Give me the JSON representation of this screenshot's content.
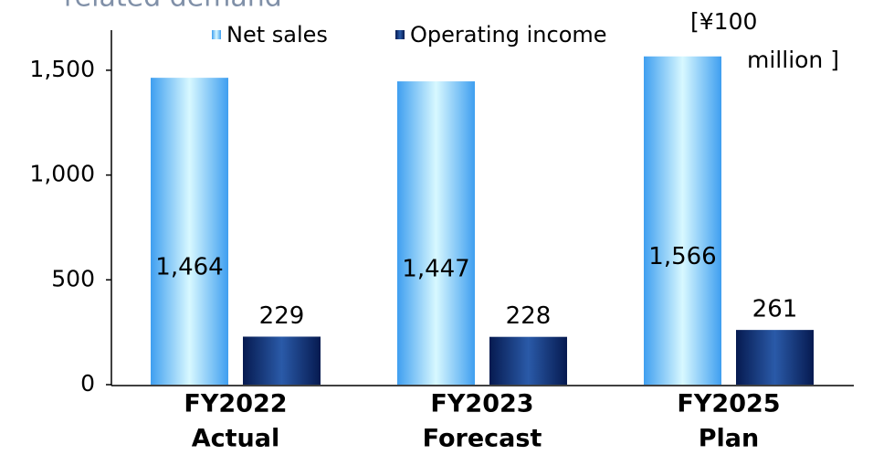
{
  "chart_data": {
    "type": "bar",
    "title": "related demand",
    "unit_label": [
      "[¥100",
      "million ]"
    ],
    "categories": [
      [
        "FY2022",
        "Actual"
      ],
      [
        "FY2023",
        "Forecast"
      ],
      [
        "FY2025",
        "Plan"
      ]
    ],
    "series": [
      {
        "name": "Net sales",
        "color": "#3f9ff0",
        "values": [
          1464,
          1447,
          1566
        ],
        "value_labels": [
          "1,464",
          "1,447",
          "1,566"
        ]
      },
      {
        "name": "Operating income",
        "color": "#0a2a6e",
        "values": [
          229,
          228,
          261
        ]
      }
    ],
    "ylim": [
      0,
      1700
    ],
    "yticks": [
      0,
      500,
      {
        "value": 1000,
        "label": "1,000"
      },
      {
        "value": 1500,
        "label": "1,500"
      }
    ],
    "grid": false,
    "legend": "top"
  }
}
